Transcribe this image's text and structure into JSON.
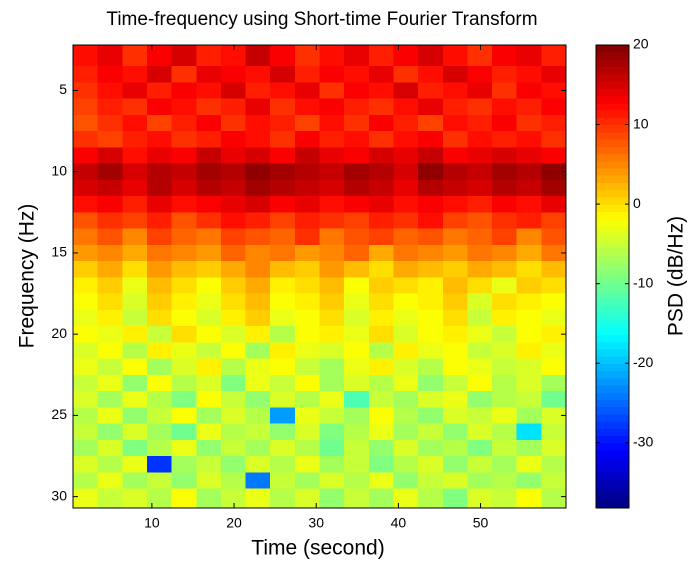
{
  "chart_data": {
    "type": "heatmap",
    "title": "Time-frequency using Short-time Fourier Transform",
    "x_label": "Time (second)",
    "y_label": "Frequency (Hz)",
    "colorbar_label": "PSD (dB/Hz)",
    "colormap": "jet",
    "clim": [
      -38.2,
      20
    ],
    "cticks": [
      -30,
      -20,
      -10,
      0,
      10,
      20
    ],
    "xlim": [
      0.4,
      60.4
    ],
    "xticks": [
      10,
      20,
      30,
      40,
      50
    ],
    "ylim": [
      2.2,
      30.7
    ],
    "y_reversed": true,
    "yticks": [
      5,
      10,
      15,
      20,
      25,
      30
    ],
    "x": [
      1.9,
      4.9,
      7.9,
      10.9,
      13.9,
      16.9,
      19.9,
      22.9,
      25.9,
      28.9,
      31.9,
      34.9,
      37.9,
      40.9,
      43.9,
      46.9,
      49.9,
      52.9,
      55.9,
      58.9
    ],
    "y": [
      3,
      4,
      5,
      6,
      7,
      8,
      9,
      10,
      11,
      12,
      13,
      14,
      15,
      16,
      17,
      18,
      19,
      20,
      21,
      22,
      23,
      24,
      25,
      26,
      27,
      28,
      29,
      30
    ],
    "z": [
      [
        12,
        14,
        10,
        13,
        15,
        11,
        12,
        16,
        13,
        10,
        12,
        14,
        11,
        13,
        15,
        12,
        10,
        13,
        14,
        11
      ],
      [
        11,
        13,
        12,
        15,
        10,
        14,
        13,
        12,
        15,
        11,
        13,
        12,
        14,
        10,
        12,
        15,
        13,
        11,
        12,
        14
      ],
      [
        10,
        12,
        14,
        11,
        13,
        12,
        15,
        11,
        12,
        14,
        10,
        13,
        12,
        15,
        11,
        12,
        14,
        10,
        13,
        12
      ],
      [
        9,
        11,
        10,
        13,
        12,
        10,
        11,
        14,
        10,
        12,
        13,
        11,
        10,
        12,
        14,
        11,
        10,
        12,
        11,
        13
      ],
      [
        8,
        10,
        12,
        9,
        11,
        13,
        10,
        12,
        11,
        9,
        12,
        10,
        13,
        11,
        9,
        12,
        11,
        13,
        10,
        11
      ],
      [
        10,
        9,
        11,
        12,
        10,
        11,
        13,
        12,
        10,
        13,
        11,
        12,
        10,
        12,
        13,
        10,
        12,
        11,
        12,
        10
      ],
      [
        13,
        15,
        12,
        14,
        13,
        16,
        14,
        15,
        13,
        16,
        14,
        13,
        15,
        14,
        16,
        13,
        14,
        15,
        14,
        13
      ],
      [
        16,
        18,
        15,
        17,
        16,
        18,
        17,
        19,
        18,
        17,
        16,
        18,
        17,
        15,
        19,
        17,
        16,
        18,
        17,
        19
      ],
      [
        15,
        16,
        14,
        17,
        15,
        17,
        16,
        18,
        17,
        16,
        15,
        17,
        16,
        14,
        17,
        16,
        15,
        17,
        16,
        18
      ],
      [
        12,
        13,
        11,
        14,
        12,
        13,
        14,
        15,
        13,
        14,
        12,
        13,
        14,
        12,
        13,
        12,
        11,
        13,
        12,
        14
      ],
      [
        8,
        10,
        9,
        11,
        8,
        10,
        12,
        11,
        9,
        11,
        10,
        9,
        11,
        10,
        12,
        9,
        8,
        10,
        11,
        9
      ],
      [
        6,
        8,
        5,
        9,
        7,
        6,
        9,
        8,
        7,
        10,
        6,
        8,
        9,
        7,
        8,
        6,
        7,
        9,
        5,
        8
      ],
      [
        4,
        5,
        3,
        6,
        5,
        4,
        7,
        5,
        6,
        4,
        5,
        7,
        3,
        6,
        5,
        4,
        6,
        5,
        3,
        6
      ],
      [
        1,
        3,
        0,
        4,
        2,
        1,
        3,
        5,
        2,
        1,
        4,
        2,
        0,
        3,
        2,
        1,
        3,
        2,
        0,
        2
      ],
      [
        -1,
        1,
        -3,
        2,
        0,
        -2,
        1,
        3,
        -1,
        0,
        2,
        -2,
        1,
        0,
        -1,
        2,
        0,
        -3,
        1,
        0
      ],
      [
        -2,
        0,
        -4,
        1,
        -1,
        -3,
        0,
        2,
        -2,
        -1,
        1,
        -3,
        0,
        -2,
        -1,
        1,
        -4,
        0,
        -1,
        -2
      ],
      [
        -3,
        -1,
        -5,
        0,
        -2,
        -4,
        -1,
        1,
        -3,
        -2,
        0,
        -4,
        -1,
        -3,
        -2,
        0,
        -5,
        -1,
        -2,
        -3
      ],
      [
        -2,
        -3,
        -1,
        -5,
        0,
        -2,
        -4,
        -1,
        -6,
        -2,
        -1,
        -3,
        0,
        -4,
        -2,
        -1,
        -3,
        -5,
        -2,
        -1
      ],
      [
        -4,
        -2,
        -6,
        -1,
        -3,
        -5,
        -2,
        -7,
        -1,
        -3,
        -4,
        -2,
        -6,
        -1,
        -3,
        -2,
        -5,
        -4,
        -1,
        -3
      ],
      [
        -3,
        -5,
        -2,
        -7,
        -4,
        -1,
        -6,
        -3,
        -2,
        -5,
        -7,
        -3,
        -1,
        -4,
        -6,
        -2,
        -3,
        -5,
        -4,
        -2
      ],
      [
        -5,
        -3,
        -8,
        -2,
        -6,
        -4,
        -9,
        -3,
        -5,
        -2,
        -7,
        -4,
        -6,
        -3,
        -8,
        -5,
        -2,
        -6,
        -4,
        -7
      ],
      [
        -4,
        -7,
        -3,
        -6,
        -9,
        -2,
        -5,
        -8,
        -4,
        -6,
        -3,
        -12,
        -5,
        -7,
        -4,
        -3,
        -8,
        -6,
        -5,
        -10
      ],
      [
        -6,
        -3,
        -8,
        -5,
        -2,
        -7,
        -4,
        -6,
        -22,
        -3,
        -5,
        -7,
        -2,
        -6,
        -8,
        -4,
        -5,
        -3,
        -7,
        -4
      ],
      [
        -5,
        -8,
        -4,
        -7,
        -10,
        -3,
        -6,
        -5,
        -8,
        -4,
        -9,
        -6,
        -3,
        -7,
        -5,
        -8,
        -4,
        -6,
        -18,
        -5
      ],
      [
        -7,
        -4,
        -9,
        -6,
        -3,
        -8,
        -5,
        -7,
        -4,
        -6,
        -10,
        -5,
        -8,
        -4,
        -7,
        -6,
        -9,
        -5,
        -7,
        -4
      ],
      [
        -4,
        -6,
        -3,
        -28,
        -7,
        -5,
        -8,
        -4,
        -6,
        -3,
        -7,
        -5,
        -9,
        -6,
        -4,
        -8,
        -5,
        -7,
        -3,
        -6
      ],
      [
        -6,
        -3,
        -7,
        -5,
        -8,
        -4,
        -6,
        -24,
        -5,
        -7,
        -4,
        -6,
        -3,
        -8,
        -5,
        -4,
        -7,
        -6,
        -8,
        -5
      ],
      [
        -3,
        -5,
        -4,
        -6,
        -2,
        -7,
        -5,
        -3,
        -6,
        -4,
        -8,
        -5,
        -7,
        -3,
        -6,
        -9,
        -4,
        -5,
        -2,
        -6
      ]
    ]
  }
}
